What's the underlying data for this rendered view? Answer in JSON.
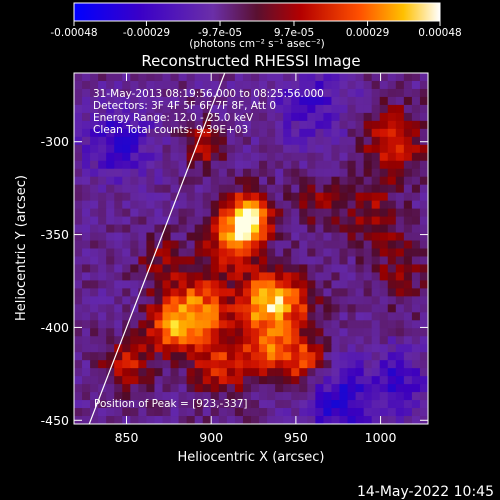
{
  "chart_data": {
    "type": "heatmap",
    "title": "Reconstructed RHESSI Image",
    "xlabel": "Heliocentric X (arcsec)",
    "ylabel": "Heliocentric Y (arcsec)",
    "xlim": [
      819,
      1028
    ],
    "ylim": [
      -452,
      -263
    ],
    "x_ticks": [
      850,
      900,
      950,
      1000
    ],
    "y_ticks": [
      -300,
      -350,
      -400,
      -450
    ],
    "colorbar": {
      "tick_labels": [
        "-0.00048",
        "-0.00029",
        "-9.7e-05",
        "9.7e-05",
        "0.00029",
        "0.00048"
      ],
      "tick_values": [
        -0.00048,
        -0.00029,
        -9.7e-05,
        9.7e-05,
        0.00029,
        0.00048
      ],
      "range": [
        -0.00048,
        0.00048
      ],
      "units_label": "(photons cm⁻² s⁻¹ asec⁻²)"
    },
    "annotations": [
      "31-May-2013 08:19:56.000 to 08:25:56.000",
      "Detectors: 3F 4F 5F 6F 7F 8F, Att 0",
      "Energy Range: 12.0 - 25.0 keV",
      "Clean     Total counts: 9.39E+03"
    ],
    "peak_label": "Position of Peak = [923,-337]",
    "peak": {
      "x": 923,
      "y": -337
    },
    "limb_line": {
      "x1": 828,
      "y1": -452,
      "x2": 908,
      "y2": -263
    },
    "blobs": [
      {
        "x": 923,
        "y": -340,
        "amp": 1.0,
        "sigma": 9
      },
      {
        "x": 913,
        "y": -352,
        "amp": 0.75,
        "sigma": 12
      },
      {
        "x": 893,
        "y": -390,
        "amp": 0.85,
        "sigma": 13
      },
      {
        "x": 875,
        "y": -400,
        "amp": 0.7,
        "sigma": 10
      },
      {
        "x": 930,
        "y": -385,
        "amp": 0.85,
        "sigma": 10
      },
      {
        "x": 948,
        "y": -385,
        "amp": 0.65,
        "sigma": 10
      },
      {
        "x": 935,
        "y": -410,
        "amp": 0.75,
        "sigma": 12
      },
      {
        "x": 955,
        "y": -418,
        "amp": 0.6,
        "sigma": 9
      },
      {
        "x": 850,
        "y": -420,
        "amp": 0.55,
        "sigma": 10
      },
      {
        "x": 905,
        "y": -420,
        "amp": 0.55,
        "sigma": 12
      },
      {
        "x": 1008,
        "y": -300,
        "amp": 0.6,
        "sigma": 13
      },
      {
        "x": 995,
        "y": -340,
        "amp": 0.45,
        "sigma": 12
      },
      {
        "x": 1012,
        "y": -370,
        "amp": 0.35,
        "sigma": 12
      },
      {
        "x": 895,
        "y": -302,
        "amp": 0.55,
        "sigma": 8
      },
      {
        "x": 962,
        "y": -333,
        "amp": 0.35,
        "sigma": 9
      },
      {
        "x": 870,
        "y": -365,
        "amp": 0.35,
        "sigma": 10
      },
      {
        "x": 845,
        "y": -300,
        "amp": -0.5,
        "sigma": 14
      },
      {
        "x": 975,
        "y": -440,
        "amp": -0.55,
        "sigma": 14
      },
      {
        "x": 1010,
        "y": -430,
        "amp": -0.45,
        "sigma": 12
      },
      {
        "x": 960,
        "y": -280,
        "amp": -0.4,
        "sigma": 15
      }
    ],
    "base_level": -0.25,
    "noise_amp": 0.18
  },
  "timestamp": "14-May-2022 10:45"
}
